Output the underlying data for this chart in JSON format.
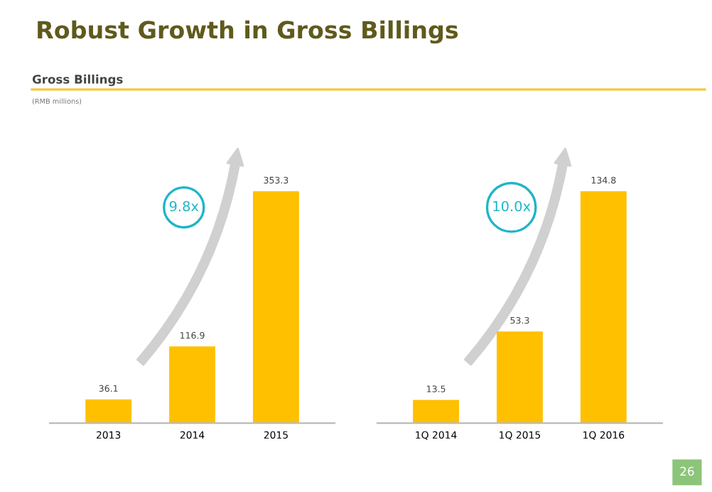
{
  "chart_data": [
    {
      "type": "bar",
      "title": "Robust Growth in Gross Billings",
      "subtitle": "Gross Billings",
      "categories": [
        "2013",
        "2014",
        "2015"
      ],
      "values": [
        36.1,
        116.9,
        353.3
      ],
      "color": "#ffc000",
      "data_labels": true,
      "grid": false,
      "legend": false,
      "annotations": [
        "9.8x",
        "26",
        "(RMB millions)"
      ]
    },
    {
      "type": "bar",
      "categories": [
        "1Q 2014",
        "1Q 2015",
        "1Q 2016"
      ],
      "values": [
        13.5,
        53.3,
        134.8
      ],
      "color": "#ffc000",
      "data_labels": true,
      "grid": false,
      "legend": false,
      "annotations": [
        "10.0x"
      ]
    }
  ]
}
